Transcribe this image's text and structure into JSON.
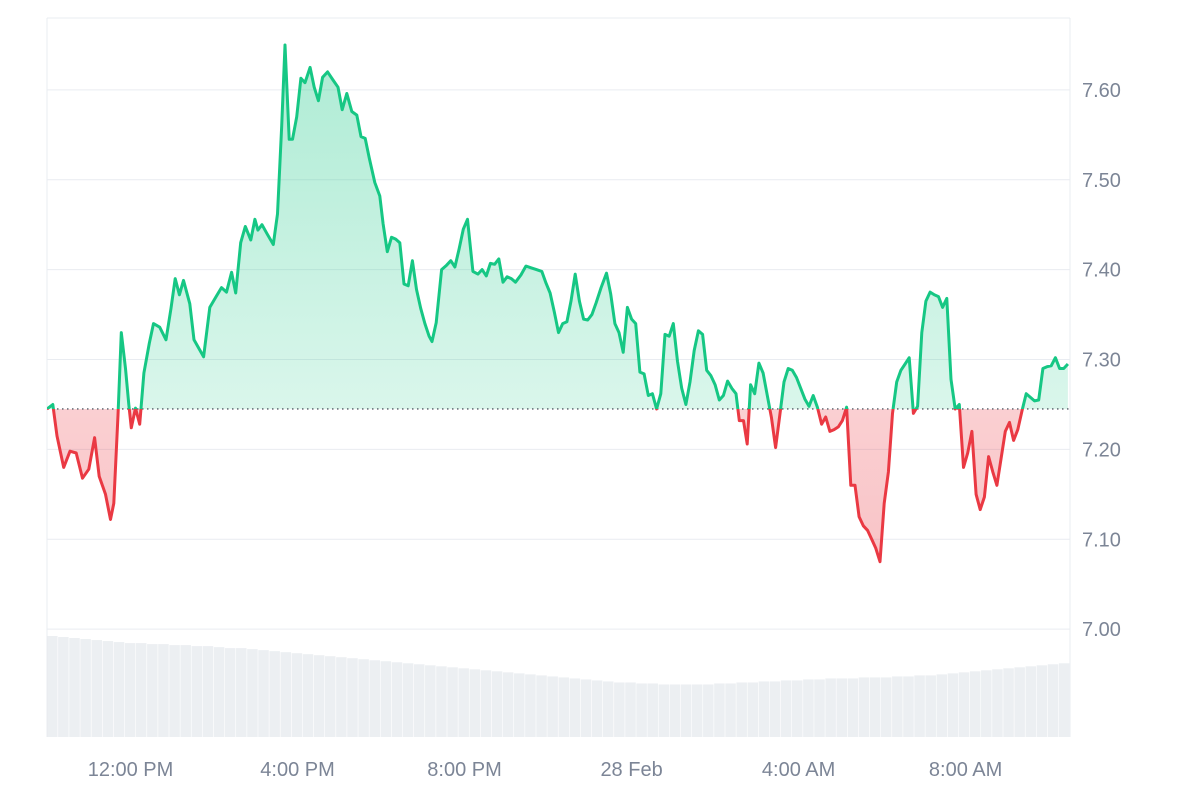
{
  "chart_data": {
    "type": "area",
    "baseline": 7.245,
    "colors": {
      "up": "#16c784",
      "down": "#ea3943",
      "volume": "#e6e9ee",
      "grid": "#e9ecf1",
      "text": "#7c8596"
    },
    "ylim": [
      6.88,
      7.68
    ],
    "yticks": [
      7.0,
      7.1,
      7.2,
      7.3,
      7.4,
      7.5,
      7.6
    ],
    "ytick_labels": [
      "7.00",
      "7.10",
      "7.20",
      "7.30",
      "7.40",
      "7.50",
      "7.60"
    ],
    "xlim": [
      10.0,
      34.5
    ],
    "xticks": [
      12,
      16,
      20,
      24,
      28,
      32
    ],
    "xtick_labels": [
      "12:00 PM",
      "4:00 PM",
      "8:00 PM",
      "28 Feb",
      "4:00 AM",
      "8:00 AM"
    ],
    "grid": true,
    "series": [
      {
        "values": [
          [
            10.0,
            7.245
          ],
          [
            10.14,
            7.25
          ],
          [
            10.24,
            7.215
          ],
          [
            10.4,
            7.18
          ],
          [
            10.55,
            7.198
          ],
          [
            10.7,
            7.196
          ],
          [
            10.85,
            7.168
          ],
          [
            11.0,
            7.178
          ],
          [
            11.14,
            7.213
          ],
          [
            11.25,
            7.17
          ],
          [
            11.4,
            7.15
          ],
          [
            11.52,
            7.122
          ],
          [
            11.6,
            7.14
          ],
          [
            11.7,
            7.238
          ],
          [
            11.78,
            7.33
          ],
          [
            11.88,
            7.29
          ],
          [
            11.96,
            7.25
          ],
          [
            12.02,
            7.224
          ],
          [
            12.12,
            7.246
          ],
          [
            12.22,
            7.228
          ],
          [
            12.32,
            7.285
          ],
          [
            12.45,
            7.318
          ],
          [
            12.55,
            7.34
          ],
          [
            12.7,
            7.336
          ],
          [
            12.85,
            7.322
          ],
          [
            12.97,
            7.357
          ],
          [
            13.07,
            7.39
          ],
          [
            13.17,
            7.372
          ],
          [
            13.27,
            7.388
          ],
          [
            13.42,
            7.362
          ],
          [
            13.52,
            7.322
          ],
          [
            13.75,
            7.303
          ],
          [
            13.9,
            7.358
          ],
          [
            14.05,
            7.37
          ],
          [
            14.18,
            7.38
          ],
          [
            14.3,
            7.375
          ],
          [
            14.42,
            7.397
          ],
          [
            14.52,
            7.374
          ],
          [
            14.64,
            7.43
          ],
          [
            14.75,
            7.448
          ],
          [
            14.88,
            7.433
          ],
          [
            14.98,
            7.456
          ],
          [
            15.05,
            7.444
          ],
          [
            15.15,
            7.45
          ],
          [
            15.27,
            7.44
          ],
          [
            15.42,
            7.428
          ],
          [
            15.52,
            7.462
          ],
          [
            15.62,
            7.56
          ],
          [
            15.7,
            7.65
          ],
          [
            15.8,
            7.545
          ],
          [
            15.88,
            7.545
          ],
          [
            15.98,
            7.57
          ],
          [
            16.08,
            7.613
          ],
          [
            16.18,
            7.608
          ],
          [
            16.3,
            7.625
          ],
          [
            16.4,
            7.603
          ],
          [
            16.5,
            7.588
          ],
          [
            16.6,
            7.614
          ],
          [
            16.72,
            7.62
          ],
          [
            16.85,
            7.611
          ],
          [
            16.97,
            7.603
          ],
          [
            17.07,
            7.578
          ],
          [
            17.18,
            7.596
          ],
          [
            17.3,
            7.576
          ],
          [
            17.42,
            7.572
          ],
          [
            17.52,
            7.548
          ],
          [
            17.62,
            7.546
          ],
          [
            17.72,
            7.524
          ],
          [
            17.85,
            7.497
          ],
          [
            17.97,
            7.482
          ],
          [
            18.05,
            7.451
          ],
          [
            18.15,
            7.42
          ],
          [
            18.25,
            7.436
          ],
          [
            18.35,
            7.434
          ],
          [
            18.45,
            7.43
          ],
          [
            18.55,
            7.384
          ],
          [
            18.65,
            7.382
          ],
          [
            18.75,
            7.41
          ],
          [
            18.85,
            7.378
          ],
          [
            18.95,
            7.357
          ],
          [
            19.05,
            7.34
          ],
          [
            19.15,
            7.326
          ],
          [
            19.22,
            7.32
          ],
          [
            19.32,
            7.341
          ],
          [
            19.45,
            7.4
          ],
          [
            19.57,
            7.405
          ],
          [
            19.67,
            7.41
          ],
          [
            19.77,
            7.403
          ],
          [
            19.87,
            7.423
          ],
          [
            19.97,
            7.445
          ],
          [
            20.07,
            7.456
          ],
          [
            20.2,
            7.398
          ],
          [
            20.32,
            7.395
          ],
          [
            20.42,
            7.4
          ],
          [
            20.52,
            7.393
          ],
          [
            20.62,
            7.407
          ],
          [
            20.72,
            7.406
          ],
          [
            20.82,
            7.412
          ],
          [
            20.92,
            7.386
          ],
          [
            21.02,
            7.392
          ],
          [
            21.12,
            7.39
          ],
          [
            21.22,
            7.386
          ],
          [
            21.35,
            7.394
          ],
          [
            21.47,
            7.404
          ],
          [
            21.6,
            7.402
          ],
          [
            21.72,
            7.4
          ],
          [
            21.85,
            7.398
          ],
          [
            21.95,
            7.385
          ],
          [
            22.05,
            7.374
          ],
          [
            22.15,
            7.353
          ],
          [
            22.25,
            7.33
          ],
          [
            22.35,
            7.34
          ],
          [
            22.45,
            7.342
          ],
          [
            22.55,
            7.365
          ],
          [
            22.65,
            7.395
          ],
          [
            22.75,
            7.365
          ],
          [
            22.85,
            7.345
          ],
          [
            22.95,
            7.344
          ],
          [
            23.05,
            7.35
          ],
          [
            23.15,
            7.363
          ],
          [
            23.27,
            7.38
          ],
          [
            23.4,
            7.396
          ],
          [
            23.5,
            7.373
          ],
          [
            23.6,
            7.34
          ],
          [
            23.7,
            7.33
          ],
          [
            23.8,
            7.308
          ],
          [
            23.9,
            7.358
          ],
          [
            24.0,
            7.345
          ],
          [
            24.1,
            7.34
          ],
          [
            24.2,
            7.286
          ],
          [
            24.3,
            7.284
          ],
          [
            24.4,
            7.26
          ],
          [
            24.5,
            7.262
          ],
          [
            24.6,
            7.245
          ],
          [
            24.7,
            7.262
          ],
          [
            24.8,
            7.328
          ],
          [
            24.9,
            7.326
          ],
          [
            25.0,
            7.34
          ],
          [
            25.1,
            7.298
          ],
          [
            25.2,
            7.268
          ],
          [
            25.3,
            7.25
          ],
          [
            25.4,
            7.275
          ],
          [
            25.5,
            7.31
          ],
          [
            25.6,
            7.332
          ],
          [
            25.7,
            7.328
          ],
          [
            25.8,
            7.288
          ],
          [
            25.9,
            7.282
          ],
          [
            26.0,
            7.272
          ],
          [
            26.1,
            7.255
          ],
          [
            26.2,
            7.26
          ],
          [
            26.3,
            7.276
          ],
          [
            26.4,
            7.268
          ],
          [
            26.5,
            7.262
          ],
          [
            26.58,
            7.232
          ],
          [
            26.68,
            7.232
          ],
          [
            26.77,
            7.206
          ],
          [
            26.85,
            7.272
          ],
          [
            26.95,
            7.262
          ],
          [
            27.05,
            7.296
          ],
          [
            27.15,
            7.285
          ],
          [
            27.25,
            7.26
          ],
          [
            27.35,
            7.235
          ],
          [
            27.45,
            7.202
          ],
          [
            27.55,
            7.238
          ],
          [
            27.65,
            7.275
          ],
          [
            27.75,
            7.29
          ],
          [
            27.85,
            7.288
          ],
          [
            27.95,
            7.28
          ],
          [
            28.05,
            7.268
          ],
          [
            28.15,
            7.256
          ],
          [
            28.25,
            7.248
          ],
          [
            28.35,
            7.26
          ],
          [
            28.45,
            7.247
          ],
          [
            28.55,
            7.228
          ],
          [
            28.65,
            7.236
          ],
          [
            28.75,
            7.22
          ],
          [
            28.85,
            7.222
          ],
          [
            28.95,
            7.225
          ],
          [
            29.05,
            7.232
          ],
          [
            29.15,
            7.247
          ],
          [
            29.25,
            7.16
          ],
          [
            29.35,
            7.16
          ],
          [
            29.45,
            7.125
          ],
          [
            29.55,
            7.115
          ],
          [
            29.65,
            7.11
          ],
          [
            29.75,
            7.1
          ],
          [
            29.85,
            7.09
          ],
          [
            29.95,
            7.075
          ],
          [
            30.05,
            7.14
          ],
          [
            30.15,
            7.175
          ],
          [
            30.25,
            7.24
          ],
          [
            30.35,
            7.275
          ],
          [
            30.45,
            7.288
          ],
          [
            30.55,
            7.295
          ],
          [
            30.65,
            7.302
          ],
          [
            30.75,
            7.24
          ],
          [
            30.85,
            7.248
          ],
          [
            30.95,
            7.33
          ],
          [
            31.05,
            7.365
          ],
          [
            31.15,
            7.375
          ],
          [
            31.25,
            7.372
          ],
          [
            31.35,
            7.37
          ],
          [
            31.45,
            7.358
          ],
          [
            31.55,
            7.368
          ],
          [
            31.65,
            7.278
          ],
          [
            31.75,
            7.245
          ],
          [
            31.85,
            7.25
          ],
          [
            31.95,
            7.18
          ],
          [
            32.05,
            7.196
          ],
          [
            32.15,
            7.22
          ],
          [
            32.25,
            7.15
          ],
          [
            32.35,
            7.133
          ],
          [
            32.45,
            7.147
          ],
          [
            32.55,
            7.192
          ],
          [
            32.65,
            7.175
          ],
          [
            32.75,
            7.16
          ],
          [
            32.85,
            7.19
          ],
          [
            32.95,
            7.22
          ],
          [
            33.05,
            7.23
          ],
          [
            33.15,
            7.21
          ],
          [
            33.25,
            7.222
          ],
          [
            33.35,
            7.243
          ],
          [
            33.45,
            7.262
          ],
          [
            33.55,
            7.258
          ],
          [
            33.65,
            7.254
          ],
          [
            33.75,
            7.255
          ],
          [
            33.85,
            7.29
          ],
          [
            33.95,
            7.292
          ],
          [
            34.05,
            7.293
          ],
          [
            34.15,
            7.302
          ],
          [
            34.25,
            7.29
          ],
          [
            34.35,
            7.29
          ],
          [
            34.45,
            7.295
          ]
        ]
      }
    ],
    "volume": [
      1.0,
      0.99,
      0.98,
      0.97,
      0.96,
      0.95,
      0.94,
      0.93,
      0.93,
      0.92,
      0.92,
      0.91,
      0.91,
      0.9,
      0.9,
      0.89,
      0.88,
      0.88,
      0.87,
      0.86,
      0.85,
      0.84,
      0.83,
      0.82,
      0.81,
      0.8,
      0.79,
      0.78,
      0.77,
      0.76,
      0.75,
      0.74,
      0.73,
      0.72,
      0.71,
      0.7,
      0.69,
      0.68,
      0.67,
      0.66,
      0.65,
      0.64,
      0.63,
      0.62,
      0.61,
      0.6,
      0.59,
      0.58,
      0.57,
      0.56,
      0.55,
      0.54,
      0.54,
      0.53,
      0.53,
      0.52,
      0.52,
      0.52,
      0.52,
      0.52,
      0.53,
      0.53,
      0.54,
      0.54,
      0.55,
      0.55,
      0.56,
      0.56,
      0.57,
      0.57,
      0.58,
      0.58,
      0.58,
      0.59,
      0.59,
      0.59,
      0.6,
      0.6,
      0.61,
      0.61,
      0.62,
      0.63,
      0.64,
      0.65,
      0.66,
      0.67,
      0.68,
      0.69,
      0.7,
      0.71,
      0.72,
      0.73
    ]
  }
}
